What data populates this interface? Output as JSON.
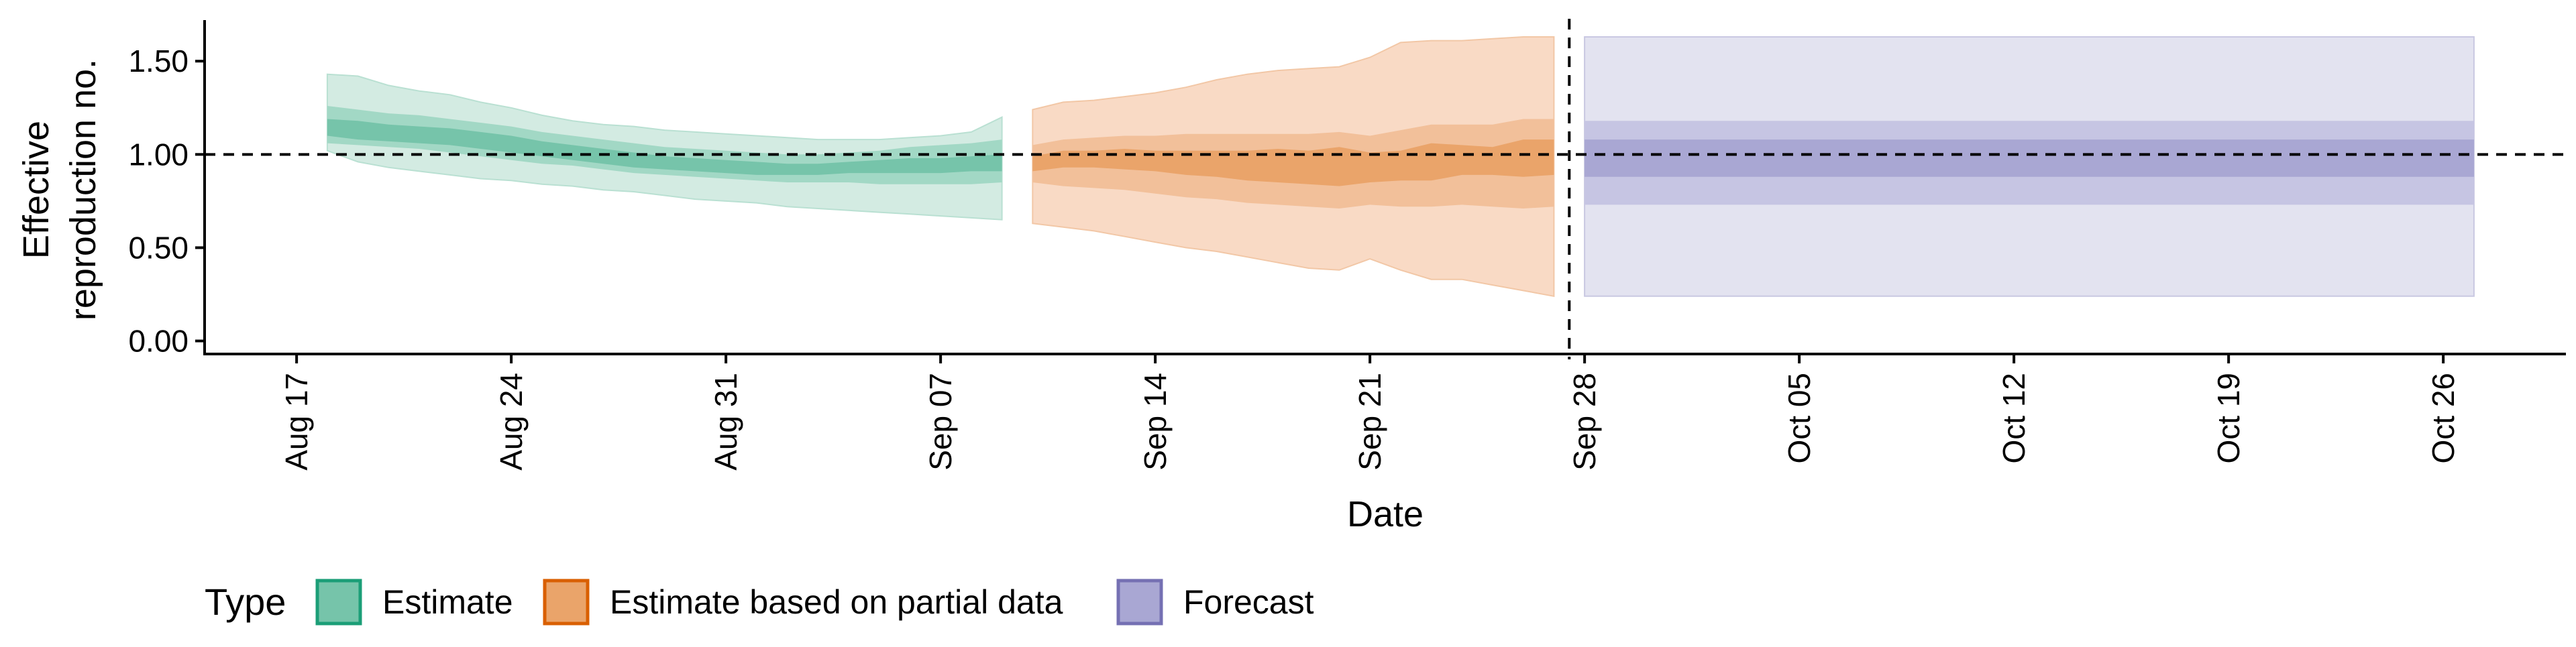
{
  "chart_data": {
    "type": "area",
    "xlabel": "Date",
    "ylabel_lines": [
      "Effective",
      "reproduction no."
    ],
    "x_ticks": [
      "2020-08-17",
      "2020-08-24",
      "2020-08-31",
      "2020-09-07",
      "2020-09-14",
      "2020-09-21",
      "2020-09-28",
      "2020-10-05",
      "2020-10-12",
      "2020-10-19",
      "2020-10-26"
    ],
    "x_tick_labels": [
      "Aug 17",
      "Aug 24",
      "Aug 31",
      "Sep 07",
      "Sep 14",
      "Sep 21",
      "Sep 28",
      "Oct 05",
      "Oct 12",
      "Oct 19",
      "Oct 26"
    ],
    "xlim": [
      "2020-08-14",
      "2020-10-30"
    ],
    "y_ticks": [
      0,
      0.5,
      1.0,
      1.5
    ],
    "y_tick_labels": [
      "0.00",
      "0.50",
      "1.00",
      "1.50"
    ],
    "ylim": [
      -0.07,
      1.72
    ],
    "reference_lines": {
      "y": 1.0,
      "x": "2020-09-27",
      "style": "dashed"
    },
    "grid": false,
    "legend": {
      "title": "Type",
      "position": "bottom",
      "entries": [
        {
          "label": "Estimate",
          "fill": "#76c4aa",
          "stroke": "#1b9e77"
        },
        {
          "label": "Estimate based on partial data",
          "fill": "#eaa46a",
          "stroke": "#d95f02"
        },
        {
          "label": "Forecast",
          "fill": "#a9a7d3",
          "stroke": "#7570b3"
        }
      ]
    },
    "series": [
      {
        "name": "Estimate",
        "colors": {
          "outer": "#d3ebe2",
          "mid": "#a2d8c5",
          "inner": "#76c4aa"
        },
        "x": [
          "2020-08-18",
          "2020-08-19",
          "2020-08-20",
          "2020-08-21",
          "2020-08-22",
          "2020-08-23",
          "2020-08-24",
          "2020-08-25",
          "2020-08-26",
          "2020-08-27",
          "2020-08-28",
          "2020-08-29",
          "2020-08-30",
          "2020-08-31",
          "2020-09-01",
          "2020-09-02",
          "2020-09-03",
          "2020-09-04",
          "2020-09-05",
          "2020-09-06",
          "2020-09-07",
          "2020-09-08",
          "2020-09-09"
        ],
        "outer_lower": [
          1.02,
          0.96,
          0.93,
          0.91,
          0.89,
          0.87,
          0.86,
          0.84,
          0.83,
          0.81,
          0.8,
          0.78,
          0.76,
          0.75,
          0.74,
          0.72,
          0.71,
          0.7,
          0.69,
          0.68,
          0.67,
          0.66,
          0.65
        ],
        "outer_upper": [
          1.43,
          1.42,
          1.37,
          1.34,
          1.32,
          1.28,
          1.25,
          1.21,
          1.18,
          1.16,
          1.15,
          1.13,
          1.12,
          1.11,
          1.1,
          1.09,
          1.08,
          1.08,
          1.08,
          1.09,
          1.1,
          1.12,
          1.2
        ],
        "mid_lower": [
          1.06,
          1.05,
          1.04,
          1.03,
          1.01,
          0.99,
          0.97,
          0.95,
          0.94,
          0.92,
          0.9,
          0.89,
          0.88,
          0.87,
          0.86,
          0.85,
          0.85,
          0.85,
          0.84,
          0.84,
          0.84,
          0.84,
          0.85
        ],
        "mid_upper": [
          1.26,
          1.24,
          1.22,
          1.21,
          1.19,
          1.17,
          1.15,
          1.12,
          1.1,
          1.08,
          1.06,
          1.04,
          1.03,
          1.02,
          1.01,
          1.0,
          1.0,
          1.01,
          1.02,
          1.04,
          1.05,
          1.06,
          1.08
        ],
        "inner_lower": [
          1.1,
          1.08,
          1.07,
          1.06,
          1.05,
          1.03,
          1.01,
          0.99,
          0.97,
          0.95,
          0.93,
          0.92,
          0.91,
          0.9,
          0.89,
          0.89,
          0.89,
          0.9,
          0.9,
          0.9,
          0.9,
          0.91,
          0.91
        ],
        "inner_upper": [
          1.19,
          1.18,
          1.16,
          1.15,
          1.14,
          1.12,
          1.1,
          1.07,
          1.05,
          1.03,
          1.01,
          0.99,
          0.98,
          0.97,
          0.96,
          0.95,
          0.95,
          0.96,
          0.97,
          0.98,
          0.98,
          0.99,
          1.0
        ]
      },
      {
        "name": "Estimate based on partial data",
        "colors": {
          "outer": "#f9dac5",
          "mid": "#f2c09a",
          "inner": "#eaa46a"
        },
        "x": [
          "2020-09-10",
          "2020-09-11",
          "2020-09-12",
          "2020-09-13",
          "2020-09-14",
          "2020-09-15",
          "2020-09-16",
          "2020-09-17",
          "2020-09-18",
          "2020-09-19",
          "2020-09-20",
          "2020-09-21",
          "2020-09-22",
          "2020-09-23",
          "2020-09-24",
          "2020-09-25",
          "2020-09-26",
          "2020-09-27"
        ],
        "outer_lower": [
          0.63,
          0.61,
          0.59,
          0.56,
          0.53,
          0.5,
          0.48,
          0.45,
          0.42,
          0.39,
          0.38,
          0.44,
          0.38,
          0.33,
          0.33,
          0.3,
          0.27,
          0.24
        ],
        "outer_upper": [
          1.24,
          1.28,
          1.29,
          1.31,
          1.33,
          1.36,
          1.4,
          1.43,
          1.45,
          1.46,
          1.47,
          1.52,
          1.6,
          1.61,
          1.61,
          1.62,
          1.63,
          1.63
        ],
        "mid_lower": [
          0.85,
          0.83,
          0.82,
          0.81,
          0.79,
          0.77,
          0.76,
          0.74,
          0.73,
          0.72,
          0.71,
          0.73,
          0.72,
          0.72,
          0.73,
          0.72,
          0.71,
          0.72
        ],
        "mid_upper": [
          1.05,
          1.08,
          1.09,
          1.1,
          1.1,
          1.11,
          1.11,
          1.11,
          1.11,
          1.11,
          1.12,
          1.1,
          1.13,
          1.16,
          1.16,
          1.16,
          1.19,
          1.19
        ],
        "inner_lower": [
          0.91,
          0.93,
          0.93,
          0.92,
          0.91,
          0.89,
          0.88,
          0.86,
          0.85,
          0.84,
          0.83,
          0.85,
          0.86,
          0.86,
          0.89,
          0.89,
          0.88,
          0.89
        ],
        "inner_upper": [
          0.99,
          1.02,
          1.02,
          1.03,
          1.02,
          1.02,
          1.02,
          1.02,
          1.03,
          1.02,
          1.04,
          1.01,
          1.02,
          1.06,
          1.05,
          1.04,
          1.08,
          1.08
        ]
      },
      {
        "name": "Forecast",
        "colors": {
          "outer": "#e3e3f0",
          "mid": "#c6c5e3",
          "inner": "#a9a7d3"
        },
        "x": [
          "2020-09-28",
          "2020-10-27"
        ],
        "outer_lower": [
          0.24,
          0.24
        ],
        "outer_upper": [
          1.63,
          1.63
        ],
        "mid_lower": [
          0.73,
          0.73
        ],
        "mid_upper": [
          1.18,
          1.18
        ],
        "inner_lower": [
          0.88,
          0.88
        ],
        "inner_upper": [
          1.08,
          1.08
        ]
      }
    ]
  }
}
